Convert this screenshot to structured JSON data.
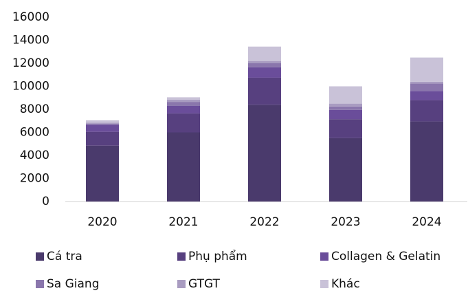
{
  "chart_data": {
    "type": "stacked_bar",
    "categories": [
      "2020",
      "2021",
      "2022",
      "2023",
      "2024"
    ],
    "series": [
      {
        "name": "Cá tra",
        "color": "#4a3a6c",
        "values": [
          4850,
          6000,
          8400,
          5500,
          6950
        ]
      },
      {
        "name": "Phụ phẩm",
        "color": "#57407f",
        "values": [
          1200,
          1650,
          2350,
          1650,
          1850
        ]
      },
      {
        "name": "Collagen & Gelatin",
        "color": "#6a4d9a",
        "values": [
          600,
          650,
          900,
          800,
          800
        ]
      },
      {
        "name": "Sa Giang",
        "color": "#8a76ac",
        "values": [
          100,
          350,
          350,
          300,
          650
        ]
      },
      {
        "name": "GTGT",
        "color": "#a99cc1",
        "values": [
          100,
          200,
          200,
          250,
          150
        ]
      },
      {
        "name": "Khác",
        "color": "#c9c2d8",
        "values": [
          200,
          200,
          1250,
          1500,
          2100
        ]
      }
    ],
    "ylim": [
      0,
      16000
    ],
    "yticks": [
      0,
      2000,
      4000,
      6000,
      8000,
      10000,
      12000,
      14000,
      16000
    ]
  }
}
